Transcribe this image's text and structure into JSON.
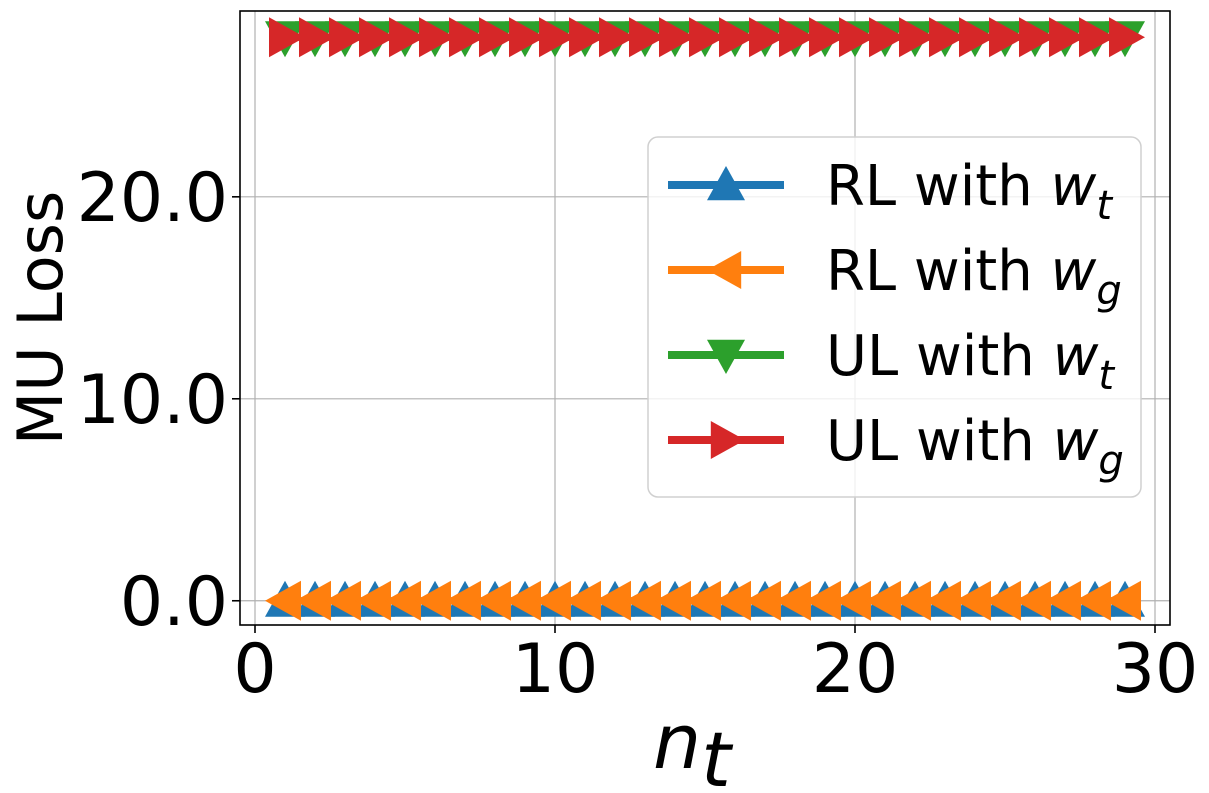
{
  "chart_data": {
    "type": "line",
    "xlabel": "n",
    "xlabel_sub": "t",
    "ylabel": "MU Loss",
    "xlim": [
      -0.5,
      30.5
    ],
    "ylim": [
      -1.2,
      29.2
    ],
    "xticks": [
      0,
      10,
      20,
      30
    ],
    "xtick_labels": [
      "0",
      "10",
      "20",
      "30"
    ],
    "yticks": [
      0,
      10,
      20
    ],
    "ytick_labels": [
      "0.0",
      "10.0",
      "20.0"
    ],
    "grid": true,
    "legend_position": "center-right",
    "x": [
      1,
      2,
      3,
      4,
      5,
      6,
      7,
      8,
      9,
      10,
      11,
      12,
      13,
      14,
      15,
      16,
      17,
      18,
      19,
      20,
      21,
      22,
      23,
      24,
      25,
      26,
      27,
      28,
      29
    ],
    "series": [
      {
        "name": "RL with w",
        "name_sub": "t",
        "color": "#1f77b4",
        "marker": "triangle-up",
        "values": [
          0,
          0,
          0,
          0,
          0,
          0,
          0,
          0,
          0,
          0,
          0,
          0,
          0,
          0,
          0,
          0,
          0,
          0,
          0,
          0,
          0,
          0,
          0,
          0,
          0,
          0,
          0,
          0,
          0
        ]
      },
      {
        "name": "RL with w",
        "name_sub": "g",
        "color": "#ff7f0e",
        "marker": "triangle-left",
        "values": [
          0,
          0,
          0,
          0,
          0,
          0,
          0,
          0,
          0,
          0,
          0,
          0,
          0,
          0,
          0,
          0,
          0,
          0,
          0,
          0,
          0,
          0,
          0,
          0,
          0,
          0,
          0,
          0,
          0
        ]
      },
      {
        "name": "UL with w",
        "name_sub": "t",
        "color": "#2ca02c",
        "marker": "triangle-down",
        "values": [
          27.9,
          27.9,
          27.9,
          27.9,
          27.9,
          27.9,
          27.9,
          27.9,
          27.9,
          27.9,
          27.9,
          27.9,
          27.9,
          27.9,
          27.9,
          27.9,
          27.9,
          27.9,
          27.9,
          27.9,
          27.9,
          27.9,
          27.9,
          27.9,
          27.9,
          27.9,
          27.9,
          27.9,
          27.9
        ]
      },
      {
        "name": "UL with w",
        "name_sub": "g",
        "color": "#d62728",
        "marker": "triangle-right",
        "values": [
          27.9,
          27.9,
          27.9,
          27.9,
          27.9,
          27.9,
          27.9,
          27.9,
          27.9,
          27.9,
          27.9,
          27.9,
          27.9,
          27.9,
          27.9,
          27.9,
          27.9,
          27.9,
          27.9,
          27.9,
          27.9,
          27.9,
          27.9,
          27.9,
          27.9,
          27.9,
          27.9,
          27.9,
          27.9
        ]
      }
    ]
  }
}
